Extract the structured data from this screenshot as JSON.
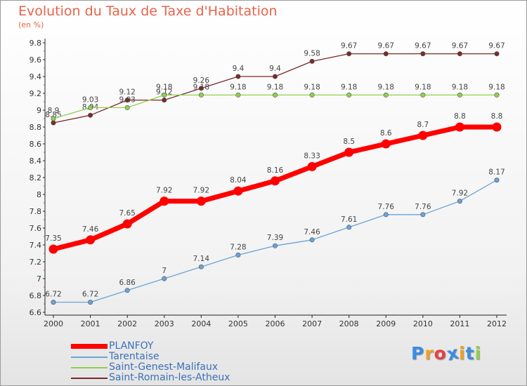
{
  "title": "Evolution du Taux de Taxe d'Habitation",
  "subtitle": "(en %)",
  "chart_data": {
    "type": "line",
    "title": "Evolution du Taux de Taxe d'Habitation",
    "ylabel": "(en %)",
    "xlabel": "",
    "x": [
      "2000",
      "2001",
      "2002",
      "2003",
      "2004",
      "2005",
      "2006",
      "2007",
      "2008",
      "2009",
      "2010",
      "2011",
      "2012"
    ],
    "ylim": [
      6.6,
      9.8
    ],
    "yticks": [
      6.6,
      6.8,
      7,
      7.2,
      7.4,
      7.6,
      7.8,
      8,
      8.2,
      8.4,
      8.6,
      8.8,
      9,
      9.2,
      9.4,
      9.6,
      9.8
    ],
    "ytick_labels": [
      "6.6",
      "6.8",
      "7",
      "7.2",
      "7.4",
      "7.6",
      "7.8",
      "8",
      "8.2",
      "8.4",
      "8.6",
      "8.8",
      "9",
      "9.2",
      "9.4",
      "9.6",
      "9.8"
    ],
    "grid": false,
    "legend_position": "bottom-left",
    "series": [
      {
        "name": "Saint-Romain-les-Atheux",
        "color": "#7a2a2a",
        "values": [
          8.85,
          8.94,
          9.12,
          9.12,
          9.26,
          9.4,
          9.4,
          9.58,
          9.67,
          9.67,
          9.67,
          9.67,
          9.67
        ],
        "labels": [
          "8.85",
          "8.94",
          "9.12",
          "9.12",
          "9.26",
          "9.4",
          "9.4",
          "9.58",
          "9.67",
          "9.67",
          "9.67",
          "9.67",
          "9.67"
        ]
      },
      {
        "name": "Saint-Genest-Malifaux",
        "color": "#8fd14f",
        "values": [
          8.9,
          9.03,
          9.03,
          9.18,
          9.18,
          9.18,
          9.18,
          9.18,
          9.18,
          9.18,
          9.18,
          9.18,
          9.18
        ],
        "labels": [
          "8.9",
          "9.03",
          "9.03",
          "9.18",
          "9.18",
          "9.18",
          "9.18",
          "9.18",
          "9.18",
          "9.18",
          "9.18",
          "9.18",
          "9.18"
        ]
      },
      {
        "name": "Tarentaise",
        "color": "#6aa3d8",
        "values": [
          6.72,
          6.72,
          6.86,
          7,
          7.14,
          7.28,
          7.39,
          7.46,
          7.61,
          7.76,
          7.76,
          7.92,
          8.17
        ],
        "labels": [
          "6.72",
          "6.72",
          "6.86",
          "7",
          "7.14",
          "7.28",
          "7.39",
          "7.46",
          "7.61",
          "7.76",
          "7.76",
          "7.92",
          "8.17"
        ]
      },
      {
        "name": "PLANFOY",
        "color": "#ff0000",
        "values": [
          7.35,
          7.46,
          7.65,
          7.92,
          7.92,
          8.04,
          8.16,
          8.33,
          8.5,
          8.6,
          8.7,
          8.8,
          8.8
        ],
        "labels": [
          "7.35",
          "7.46",
          "7.65",
          "7.92",
          "7.92",
          "8.04",
          "8.16",
          "8.33",
          "8.5",
          "8.6",
          "8.7",
          "8.8",
          "8.8"
        ]
      }
    ]
  },
  "legend": [
    {
      "name": "PLANFOY",
      "color": "#ff0000"
    },
    {
      "name": "Tarentaise",
      "color": "#6aa3d8"
    },
    {
      "name": "Saint-Genest-Malifaux",
      "color": "#8fd14f"
    },
    {
      "name": "Saint-Romain-les-Atheux",
      "color": "#7a2a2a"
    }
  ],
  "logo": {
    "text": "Proxiti",
    "colors": [
      "#3b8de0",
      "#f0a020",
      "#e84040",
      "#3b8de0",
      "#f0a020",
      "#3b8de0",
      "#8fd14f"
    ]
  }
}
